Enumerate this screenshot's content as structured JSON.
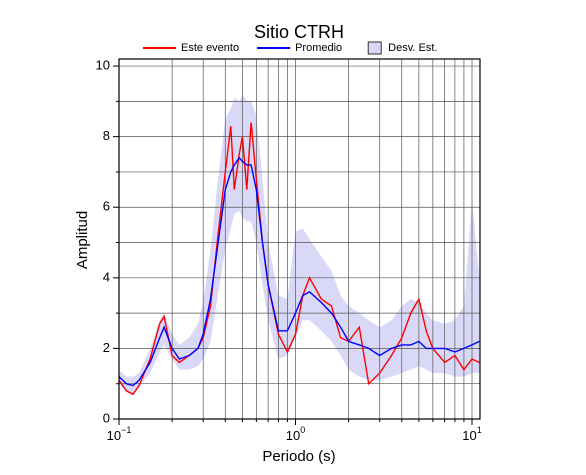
{
  "chart_data": {
    "type": "line",
    "title": "Sitio CTRH",
    "xlabel": "Periodo (s)",
    "ylabel": "Amplitud",
    "xlog": true,
    "grid": true,
    "legend": "top",
    "xlim": [
      0.1,
      11.1
    ],
    "ylim": [
      0,
      10.2
    ],
    "xticks": [
      {
        "value": 0.1,
        "label": "10−1"
      },
      {
        "value": 1,
        "label": "100"
      },
      {
        "value": 10,
        "label": "101"
      }
    ],
    "xminorticks": [
      0.2,
      0.3,
      0.4,
      0.5,
      0.6,
      0.7,
      0.8,
      0.9,
      2,
      3,
      4,
      5,
      6,
      7,
      8,
      9
    ],
    "yticks": [
      0,
      2,
      4,
      6,
      8,
      10
    ],
    "yminorticks": [
      1,
      3,
      5,
      7,
      9
    ],
    "x": [
      0.1,
      0.11,
      0.12,
      0.13,
      0.15,
      0.17,
      0.18,
      0.2,
      0.22,
      0.25,
      0.28,
      0.3,
      0.33,
      0.36,
      0.4,
      0.43,
      0.45,
      0.48,
      0.5,
      0.53,
      0.56,
      0.6,
      0.65,
      0.7,
      0.8,
      0.9,
      1.0,
      1.1,
      1.2,
      1.4,
      1.6,
      1.8,
      2.0,
      2.3,
      2.6,
      3.0,
      3.5,
      4,
      4.5,
      5,
      5.5,
      6,
      7,
      8,
      9,
      10,
      11
    ],
    "band": {
      "name": "Desv. Est.",
      "color": "#d9d9f7",
      "upper": [
        1.4,
        1.2,
        1.2,
        1.3,
        2.0,
        2.8,
        3.0,
        2.4,
        2.1,
        2.3,
        2.7,
        3.3,
        4.8,
        6.6,
        8.5,
        8.8,
        9.1,
        9.0,
        9.2,
        9.0,
        9.0,
        8.6,
        6.8,
        5.0,
        3.5,
        3.4,
        5.3,
        5.4,
        5.1,
        4.6,
        4.2,
        3.5,
        3.2,
        3.0,
        2.8,
        2.6,
        2.8,
        3.2,
        3.4,
        3.3,
        3.0,
        2.8,
        2.7,
        2.8,
        3.2,
        6.2,
        4.0
      ],
      "lower": [
        1.0,
        0.8,
        0.7,
        0.9,
        1.3,
        1.9,
        2.1,
        1.7,
        1.4,
        1.4,
        1.5,
        1.7,
        2.2,
        3.4,
        4.8,
        5.4,
        5.8,
        5.9,
        5.7,
        5.6,
        5.6,
        5.0,
        3.8,
        2.8,
        1.7,
        1.8,
        2.3,
        2.8,
        2.8,
        2.5,
        2.2,
        1.8,
        1.4,
        1.2,
        1.1,
        1.1,
        1.2,
        1.3,
        1.4,
        1.5,
        1.4,
        1.3,
        1.3,
        1.2,
        1.2,
        1.3,
        1.3
      ]
    },
    "series": [
      {
        "name": "Este evento",
        "color": "#ff0000",
        "values": [
          1.1,
          0.8,
          0.7,
          0.95,
          1.7,
          2.7,
          2.9,
          1.8,
          1.6,
          1.8,
          2.0,
          2.3,
          3.2,
          5.0,
          7.0,
          8.3,
          6.5,
          7.5,
          8.0,
          6.5,
          8.4,
          6.8,
          5.0,
          3.8,
          2.4,
          1.9,
          2.4,
          3.5,
          4.0,
          3.4,
          3.2,
          2.3,
          2.2,
          2.6,
          1.0,
          1.3,
          1.8,
          2.3,
          3.0,
          3.4,
          2.5,
          2.0,
          1.6,
          1.8,
          1.4,
          1.7,
          1.6
        ]
      },
      {
        "name": "Promedio",
        "color": "#0000ff",
        "values": [
          1.2,
          1.0,
          0.95,
          1.1,
          1.6,
          2.3,
          2.6,
          2.0,
          1.7,
          1.8,
          2.0,
          2.4,
          3.4,
          4.8,
          6.5,
          7.0,
          7.2,
          7.4,
          7.3,
          7.2,
          7.2,
          6.5,
          5.0,
          3.8,
          2.5,
          2.5,
          3.0,
          3.5,
          3.6,
          3.3,
          3.0,
          2.6,
          2.2,
          2.1,
          2.0,
          1.8,
          2.0,
          2.1,
          2.1,
          2.2,
          2.0,
          2.0,
          2.0,
          1.9,
          2.0,
          2.1,
          2.2
        ]
      }
    ]
  }
}
